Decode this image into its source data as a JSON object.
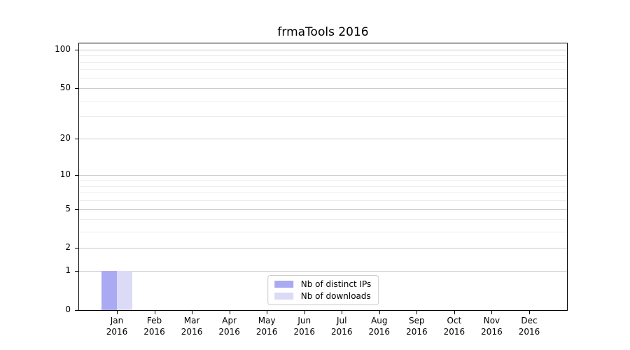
{
  "chart_data": {
    "type": "bar",
    "title": "frmaTools 2016",
    "categories": [
      "Jan",
      "Feb",
      "Mar",
      "Apr",
      "May",
      "Jun",
      "Jul",
      "Aug",
      "Sep",
      "Oct",
      "Nov",
      "Dec"
    ],
    "category_year": "2016",
    "series": [
      {
        "name": "Nb of distinct IPs",
        "color": "#aaaaf2",
        "values": [
          1,
          0,
          0,
          0,
          0,
          0,
          0,
          0,
          0,
          0,
          0,
          0
        ]
      },
      {
        "name": "Nb of downloads",
        "color": "#dbdbf8",
        "values": [
          1,
          0,
          0,
          0,
          0,
          0,
          0,
          0,
          0,
          0,
          0,
          0
        ]
      }
    ],
    "xlabel": "",
    "ylabel": "",
    "yscale": "log1p",
    "ylim": [
      0,
      112
    ],
    "yticks": [
      0,
      1,
      2,
      5,
      10,
      20,
      50,
      100
    ],
    "minor_gridlines": [
      3,
      4,
      6,
      7,
      8,
      9,
      30,
      40,
      60,
      70,
      80,
      90
    ],
    "grid": true,
    "legend_position": "lower center"
  },
  "colors": {
    "major_grid": "#cccccc",
    "minor_grid": "#ededed",
    "spine": "#000000",
    "text": "#000000",
    "background": "#ffffff"
  }
}
